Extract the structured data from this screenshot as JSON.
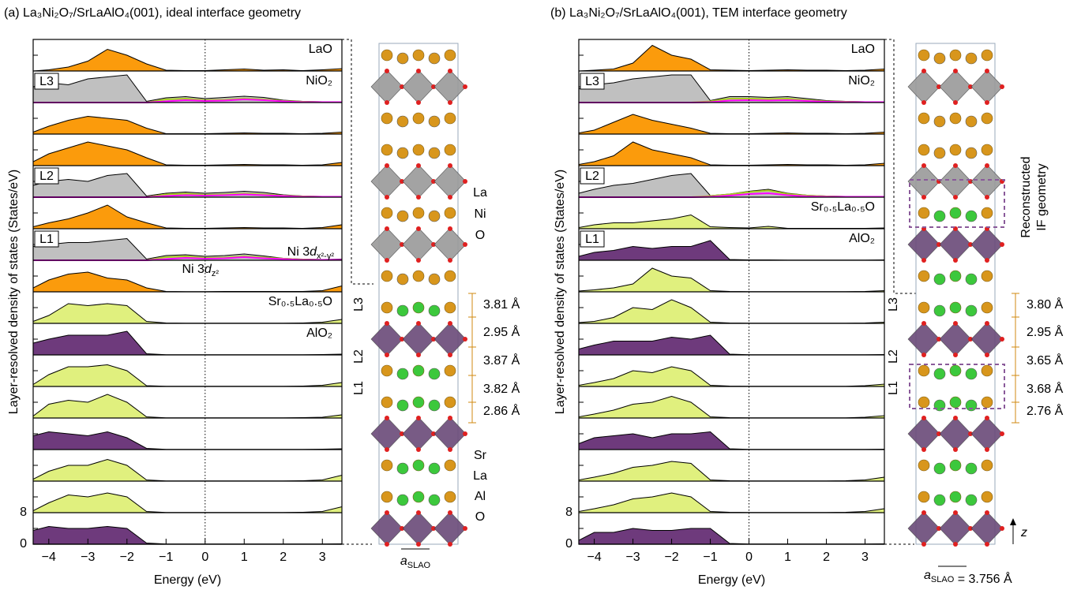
{
  "chart_data": [
    {
      "type": "stacked-area",
      "title": "(a) La₃Ni₂O₇/SrLaAlO₄(001), ideal interface geometry",
      "xlabel": "Energy (eV)",
      "ylabel": "Layer-resolved density of states (States/eV)",
      "x": [
        -4.4,
        -4,
        -3.5,
        -3,
        -2.5,
        -2,
        -1.5,
        -1,
        -0.5,
        0,
        0.5,
        1,
        1.5,
        2,
        2.5,
        3,
        3.5
      ],
      "xlim": [
        -4.4,
        3.5
      ],
      "xticks": [
        {
          "value": -4,
          "label": "−4"
        },
        {
          "value": -3,
          "label": "−3"
        },
        {
          "value": -2,
          "label": "−2"
        },
        {
          "value": -1,
          "label": "−1"
        },
        0,
        1,
        2,
        3
      ],
      "ylim": [
        0,
        8
      ],
      "yticks": [
        0,
        8
      ],
      "dx2y2_color": "#ff00ff",
      "dz2_color": "#a8d020",
      "orbital_legend": [
        [
          "Ni 3",
          {
            "i": "d"
          },
          {
            "sub": "x²-y²"
          }
        ],
        [
          "Ni 3",
          {
            "i": "d"
          },
          {
            "sub": "z²"
          }
        ]
      ],
      "layers": [
        {
          "label": "LaO",
          "color": "#fb9b0c",
          "values": [
            0,
            0.3,
            1,
            2.5,
            5.5,
            4,
            1.8,
            0.2,
            0.1,
            0.1,
            0.3,
            0.5,
            0.2,
            0.3,
            0.1,
            0.3,
            0.6
          ]
        },
        {
          "label": "NiO₂",
          "tag": "L3",
          "color": "#c0c0c0",
          "values": [
            4,
            5,
            4.5,
            6,
            6.5,
            7,
            0.3,
            1.2,
            1.5,
            1,
            1.3,
            1.6,
            1.3,
            0.6,
            0.3,
            0.2,
            0.2
          ],
          "dx2y2": [
            0,
            0,
            0,
            0,
            0,
            0,
            0,
            0.3,
            0.6,
            0.4,
            0.5,
            0.8,
            0.6,
            0.3,
            0.1,
            0.1,
            0.1
          ],
          "dz2": [
            0,
            0,
            0,
            0,
            0,
            0,
            0,
            0.8,
            1,
            0.6,
            0.7,
            1,
            0.8,
            0.4,
            0.2,
            0.1,
            0.1
          ]
        },
        {
          "color": "#fb9b0c",
          "values": [
            0.5,
            2,
            3.5,
            4.5,
            4,
            3.5,
            1.5,
            0.1,
            0.1,
            0.1,
            0.2,
            0.3,
            0.2,
            0.2,
            0.1,
            0.2,
            0.5
          ]
        },
        {
          "color": "#fb9b0c",
          "values": [
            1,
            3,
            4.5,
            6,
            5,
            4,
            2,
            0.2,
            0.1,
            0.1,
            0.2,
            0.3,
            0.2,
            0.2,
            0.1,
            0.2,
            0.8
          ]
        },
        {
          "tag": "L2",
          "color": "#c0c0c0",
          "values": [
            3,
            4,
            4.5,
            4,
            5.5,
            6,
            0.3,
            1,
            1.3,
            1,
            1.2,
            1.5,
            1.2,
            0.6,
            0.3,
            0.2,
            0.2
          ],
          "dx2y2": [
            0,
            0,
            0,
            0,
            0,
            0,
            0,
            0.3,
            0.5,
            0.4,
            0.5,
            0.7,
            0.5,
            0.3,
            0.1,
            0.1,
            0.1
          ],
          "dz2": [
            0,
            0,
            0,
            0,
            0,
            0,
            0,
            0.7,
            0.9,
            0.6,
            0.7,
            0.9,
            0.7,
            0.4,
            0.2,
            0.1,
            0.1
          ]
        },
        {
          "color": "#fb9b0c",
          "values": [
            0.5,
            1.5,
            2.5,
            4,
            6,
            3,
            1.5,
            0.2,
            0.1,
            0.1,
            0.2,
            0.3,
            0.2,
            0.2,
            0.1,
            0.3,
            1
          ]
        },
        {
          "tag": "L1",
          "color": "#c0c0c0",
          "values": [
            3.5,
            4,
            4.5,
            4.5,
            5,
            5.5,
            0.3,
            1.2,
            1.4,
            1,
            1.2,
            1.6,
            1.1,
            0.5,
            0.3,
            0.2,
            0.3
          ],
          "dx2y2": [
            0,
            0,
            0,
            0,
            0,
            0,
            0,
            0.3,
            0.6,
            0.4,
            0.5,
            0.8,
            0.5,
            0.3,
            0.1,
            0.1,
            0.1
          ],
          "dz2": [
            0,
            0,
            0,
            0,
            0,
            0,
            0,
            0.8,
            1,
            0.6,
            0.7,
            1,
            0.7,
            0.4,
            0.2,
            0.1,
            0.1
          ]
        },
        {
          "color": "#fb9b0c",
          "values": [
            1,
            3,
            4.5,
            5,
            3.5,
            3,
            1,
            0.1,
            0.05,
            0.05,
            0.1,
            0.1,
            0.1,
            0.1,
            0.1,
            0.3,
            1.5
          ]
        },
        {
          "label": "Sr₀.₅La₀.₅O",
          "color": "#e0f07e",
          "values": [
            0.5,
            2,
            5,
            4.5,
            5,
            4.5,
            0.5,
            0.1,
            0.05,
            0.05,
            0.05,
            0.05,
            0.05,
            0.05,
            0.1,
            0.3,
            1
          ]
        },
        {
          "label": "AlO₂",
          "color": "#6e3a7c",
          "values": [
            3,
            4,
            5,
            5,
            5,
            6,
            0.3,
            0.05,
            0.05,
            0.05,
            0.05,
            0.05,
            0.05,
            0.05,
            0.05,
            0.1,
            0.2
          ]
        },
        {
          "color": "#e0f07e",
          "values": [
            0.5,
            3,
            5,
            5,
            5.5,
            4,
            0.2,
            0.05,
            0.05,
            0.05,
            0.05,
            0.05,
            0.05,
            0.05,
            0.1,
            0.3,
            1
          ]
        },
        {
          "color": "#e0f07e",
          "values": [
            0.5,
            3.5,
            4.5,
            4,
            6,
            4,
            0.3,
            0.05,
            0.05,
            0.05,
            0.05,
            0.05,
            0.05,
            0.05,
            0.1,
            0.2,
            0.8
          ]
        },
        {
          "color": "#6e3a7c",
          "values": [
            3.5,
            4.5,
            4,
            3.5,
            4.5,
            3,
            0.3,
            0.05,
            0.05,
            0.05,
            0.05,
            0.05,
            0.05,
            0.05,
            0.05,
            0.1,
            0.2
          ]
        },
        {
          "color": "#e0f07e",
          "values": [
            0.5,
            2.5,
            4,
            4,
            5.5,
            4,
            0.3,
            0.05,
            0.05,
            0.05,
            0.05,
            0.05,
            0.05,
            0.05,
            0.1,
            0.3,
            1.5
          ]
        },
        {
          "color": "#e0f07e",
          "values": [
            0.5,
            2.5,
            4.5,
            4,
            5,
            4,
            0.3,
            0.05,
            0.05,
            0.05,
            0.05,
            0.05,
            0.05,
            0.05,
            0.1,
            0.3,
            1.5
          ]
        },
        {
          "color": "#6e3a7c",
          "values": [
            3.5,
            4.5,
            4,
            4,
            4.5,
            4,
            0.3,
            0.05,
            0.05,
            0.05,
            0.05,
            0.05,
            0.05,
            0.05,
            0.05,
            0.05,
            0.1
          ]
        }
      ],
      "structure": {
        "elements_top": [
          {
            "text": "La",
            "color": "#d08a10"
          },
          {
            "text": "Ni",
            "color": "#808080"
          },
          {
            "text": "O",
            "color": "#ff2020"
          }
        ],
        "elements_bottom": [
          {
            "text": "Sr",
            "color": "#22cc22"
          },
          {
            "text": "La",
            "color": "#d08a10"
          },
          {
            "text": "Al",
            "color": "#7a4a8a"
          },
          {
            "text": "O",
            "color": "#ff2020"
          }
        ],
        "layers": [
          "L3",
          "L2",
          "L1"
        ],
        "distances": [
          "3.81 Å",
          "2.95 Å",
          "3.87 Å",
          "3.82 Å",
          "2.86 Å"
        ],
        "lattice": [
          {
            "i": "a"
          },
          {
            "sub": "SLAO"
          }
        ]
      }
    },
    {
      "type": "stacked-area",
      "title": "(b) La₃Ni₂O₇/SrLaAlO₄(001), TEM interface geometry",
      "xlabel": "Energy (eV)",
      "ylabel": "Layer-resolved density of states (States/eV)",
      "x": [
        -4.4,
        -4,
        -3.5,
        -3,
        -2.5,
        -2,
        -1.5,
        -1,
        -0.5,
        0,
        0.5,
        1,
        1.5,
        2,
        2.5,
        3,
        3.5
      ],
      "xlim": [
        -4.4,
        3.5
      ],
      "xticks": [
        {
          "value": -4,
          "label": "−4"
        },
        {
          "value": -3,
          "label": "−3"
        },
        {
          "value": -2,
          "label": "−2"
        },
        {
          "value": -1,
          "label": "−1"
        },
        0,
        1,
        2,
        3
      ],
      "ylim": [
        0,
        8
      ],
      "yticks": [
        0,
        8
      ],
      "dx2y2_color": "#ff00ff",
      "dz2_color": "#a8d020",
      "layers": [
        {
          "label": "LaO",
          "color": "#fb9b0c",
          "values": [
            0,
            0.2,
            0.5,
            2,
            6.5,
            4,
            3,
            0.3,
            0.2,
            0.1,
            0.2,
            0.3,
            0.2,
            0.2,
            0.1,
            0.2,
            0.5
          ]
        },
        {
          "label": "NiO₂",
          "tag": "L3",
          "color": "#c0c0c0",
          "values": [
            3.5,
            4.5,
            5,
            6,
            6.5,
            7,
            7,
            0.5,
            1.5,
            1.5,
            1.3,
            1.5,
            1,
            0.5,
            0.3,
            0.2,
            0.2
          ],
          "dx2y2": [
            0,
            0,
            0,
            0,
            0,
            0,
            0,
            0.1,
            0.5,
            0.6,
            0.5,
            0.6,
            0.4,
            0.2,
            0.1,
            0.1,
            0.1
          ],
          "dz2": [
            0,
            0,
            0,
            0,
            0,
            0,
            0,
            0.3,
            1,
            1,
            0.9,
            1,
            0.6,
            0.3,
            0.2,
            0.1,
            0.1
          ]
        },
        {
          "color": "#fb9b0c",
          "values": [
            0.3,
            1,
            3,
            5,
            3.5,
            2.5,
            1.5,
            0.2,
            0.1,
            0.1,
            0.2,
            0.3,
            0.2,
            0.2,
            0.1,
            0.2,
            0.5
          ]
        },
        {
          "color": "#fb9b0c",
          "values": [
            0.3,
            1,
            2.5,
            6,
            4,
            3,
            2,
            0.2,
            0.1,
            0.1,
            0.2,
            0.3,
            0.2,
            0.2,
            0.1,
            0.2,
            0.6
          ]
        },
        {
          "tag": "L2",
          "color": "#c0c0c0",
          "values": [
            1,
            2,
            3,
            3.5,
            4.5,
            5.5,
            6,
            0.4,
            0.8,
            1.5,
            2,
            1,
            0.5,
            0.3,
            0.2,
            0.2,
            0.2
          ],
          "dx2y2": [
            0,
            0,
            0,
            0,
            0,
            0,
            0,
            0.1,
            0.4,
            0.8,
            1,
            0.5,
            0.2,
            0.1,
            0.1,
            0.1,
            0.1
          ],
          "dz2": [
            0,
            0,
            0,
            0,
            0,
            0,
            0,
            0.3,
            0.7,
            1.3,
            1.7,
            0.8,
            0.4,
            0.2,
            0.1,
            0.1,
            0.1
          ]
        },
        {
          "label": "Sr₀.₅La₀.₅O",
          "color": "#e0f07e",
          "values": [
            0.3,
            1,
            1.5,
            1.5,
            2,
            2.5,
            3.5,
            0.5,
            0.3,
            0.2,
            0.6,
            0.1,
            0.1,
            0.1,
            0.1,
            0.1,
            0.2
          ]
        },
        {
          "label": "AlO₂",
          "tag": "L1",
          "color": "#6e3a7c",
          "values": [
            1,
            2,
            2.5,
            3.5,
            3,
            3.5,
            3.5,
            5,
            0.2,
            0.1,
            0.1,
            0.05,
            0.05,
            0.05,
            0.05,
            0.05,
            0.1
          ]
        },
        {
          "color": "#e0f07e",
          "values": [
            0.2,
            0.5,
            1,
            2,
            6,
            4,
            3.5,
            0.3,
            0.1,
            0.05,
            0.05,
            0.05,
            0.05,
            0.05,
            0.05,
            0.1,
            0.3
          ]
        },
        {
          "color": "#e0f07e",
          "values": [
            0.2,
            0.5,
            1.5,
            4,
            3.5,
            6,
            4,
            0.3,
            0.1,
            0.05,
            0.05,
            0.05,
            0.05,
            0.05,
            0.05,
            0.1,
            0.3
          ]
        },
        {
          "color": "#6e3a7c",
          "values": [
            1.5,
            2.5,
            3.5,
            3.5,
            3.5,
            4.5,
            4,
            5,
            0.2,
            0.05,
            0.05,
            0.05,
            0.05,
            0.05,
            0.05,
            0.05,
            0.1
          ]
        },
        {
          "color": "#e0f07e",
          "values": [
            0.3,
            1,
            2,
            4,
            3.5,
            5,
            4,
            0.3,
            0.1,
            0.05,
            0.05,
            0.05,
            0.05,
            0.05,
            0.05,
            0.2,
            0.6
          ]
        },
        {
          "color": "#e0f07e",
          "values": [
            0.3,
            1,
            2,
            3.5,
            4,
            5.5,
            4,
            0.3,
            0.1,
            0.05,
            0.05,
            0.05,
            0.05,
            0.05,
            0.05,
            0.2,
            0.6
          ]
        },
        {
          "color": "#6e3a7c",
          "values": [
            1.5,
            3,
            3.5,
            4,
            3,
            4,
            4,
            4.5,
            0.2,
            0.05,
            0.05,
            0.05,
            0.05,
            0.05,
            0.05,
            0.05,
            0.1
          ]
        },
        {
          "color": "#e0f07e",
          "values": [
            0.3,
            1,
            2,
            3.5,
            4,
            5,
            4.5,
            0.3,
            0.1,
            0.05,
            0.05,
            0.05,
            0.05,
            0.05,
            0.1,
            0.3,
            1
          ]
        },
        {
          "color": "#e0f07e",
          "values": [
            0.3,
            1,
            2,
            3.5,
            4,
            5,
            4,
            0.3,
            0.1,
            0.05,
            0.05,
            0.05,
            0.05,
            0.05,
            0.1,
            0.3,
            1
          ]
        },
        {
          "color": "#6e3a7c",
          "values": [
            1,
            3,
            3,
            4,
            3.5,
            3.5,
            4,
            4,
            0.2,
            0.05,
            0.05,
            0.05,
            0.05,
            0.05,
            0.05,
            0.05,
            0.1
          ]
        }
      ],
      "structure": {
        "layers": [
          "L3",
          "L2",
          "L1"
        ],
        "distances": [
          "3.80 Å",
          "2.95 Å",
          "3.65 Å",
          "3.68 Å",
          "2.76 Å"
        ],
        "lattice": [
          {
            "i": "a"
          },
          {
            "sub": "SLAO"
          },
          " = 3.756 Å"
        ],
        "note": [
          "Reconstructed",
          "IF geometry"
        ],
        "axis": "z"
      }
    }
  ]
}
